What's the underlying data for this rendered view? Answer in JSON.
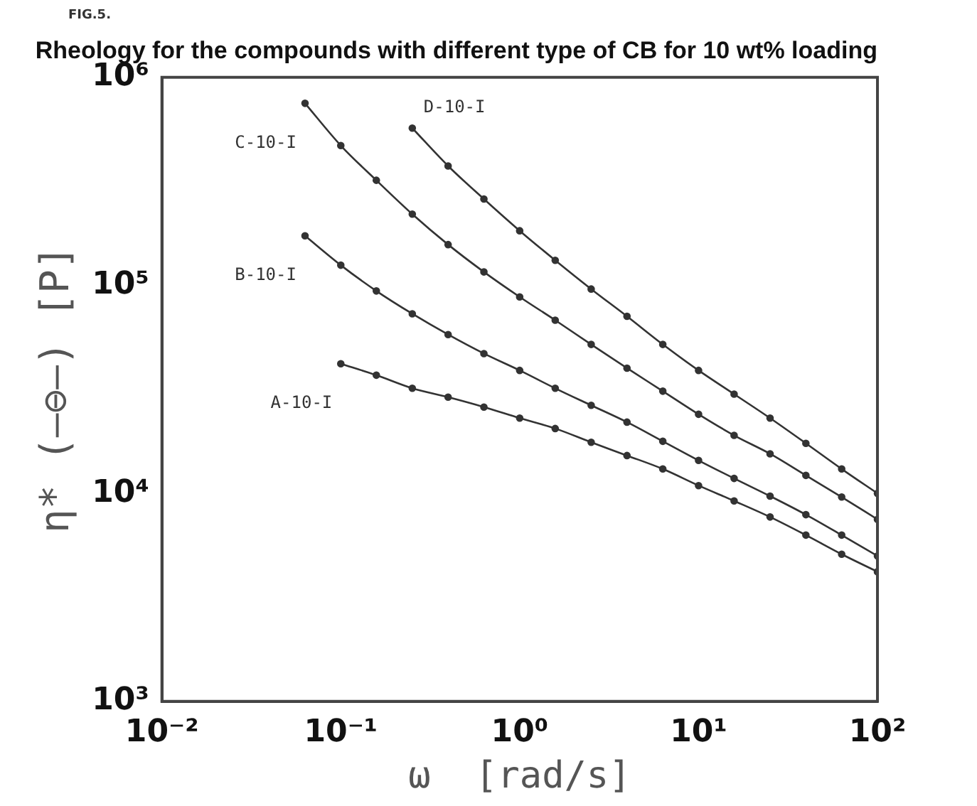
{
  "chart_data": {
    "type": "line",
    "title": "Rheology for the compounds with different type of CB for 10 wt% loading",
    "xlabel": "ω  [rad/s]",
    "ylabel": "η* (—⊖—) [P]",
    "annotations": [
      "FIG.5."
    ],
    "log": "xy",
    "xlim": [
      0.01,
      100
    ],
    "ylim": [
      1000,
      1000000
    ],
    "xticks": [
      {
        "value": 0.01,
        "label": "10⁻²"
      },
      {
        "value": 0.1,
        "label": "10⁻¹"
      },
      {
        "value": 1,
        "label": "10⁰"
      },
      {
        "value": 10,
        "label": "10¹"
      },
      {
        "value": 100,
        "label": "10²"
      }
    ],
    "yticks": [
      {
        "value": 1000,
        "label": "10³"
      },
      {
        "value": 10000,
        "label": "10⁴"
      },
      {
        "value": 100000,
        "label": "10⁵"
      },
      {
        "value": 1000000,
        "label": "10⁶"
      }
    ],
    "grid": false,
    "legend": false,
    "marker": "circle",
    "line_style": "solid",
    "series": [
      {
        "name": "C-10-I",
        "color": "#333333",
        "x": [
          0.0631,
          0.1,
          0.158,
          0.251,
          0.398,
          0.631,
          1,
          1.58,
          2.51,
          3.98,
          6.31,
          10,
          15.8,
          25.1,
          39.8,
          63.1,
          100
        ],
        "values": [
          750000,
          470000,
          320000,
          220000,
          157000,
          116000,
          88000,
          68000,
          52000,
          40000,
          31000,
          24000,
          19000,
          15500,
          12200,
          9600,
          7500
        ]
      },
      {
        "name": "D-10-I",
        "color": "#333333",
        "x": [
          0.251,
          0.398,
          0.631,
          1,
          1.58,
          2.51,
          3.98,
          6.31,
          10,
          15.8,
          25.1,
          39.8,
          63.1,
          100
        ],
        "values": [
          570000,
          375000,
          260000,
          183000,
          132000,
          96000,
          71000,
          52000,
          39000,
          30000,
          23000,
          17400,
          13100,
          10000
        ]
      },
      {
        "name": "B-10-I",
        "color": "#333333",
        "x": [
          0.0631,
          0.1,
          0.158,
          0.251,
          0.398,
          0.631,
          1,
          1.58,
          2.51,
          3.98,
          6.31,
          10,
          15.8,
          25.1,
          39.8,
          63.1,
          100
        ],
        "values": [
          173000,
          125000,
          94000,
          73000,
          58000,
          47000,
          39000,
          32000,
          26500,
          22000,
          17800,
          14400,
          11800,
          9700,
          7900,
          6300,
          5000
        ]
      },
      {
        "name": "A-10-I",
        "color": "#333333",
        "x": [
          0.1,
          0.158,
          0.251,
          0.398,
          0.631,
          1,
          1.58,
          2.51,
          3.98,
          6.31,
          10,
          15.8,
          25.1,
          39.8,
          63.1,
          100
        ],
        "values": [
          42000,
          37000,
          32000,
          29000,
          26000,
          23000,
          20500,
          17600,
          15200,
          13100,
          10900,
          9200,
          7700,
          6300,
          5100,
          4200
        ]
      }
    ]
  }
}
